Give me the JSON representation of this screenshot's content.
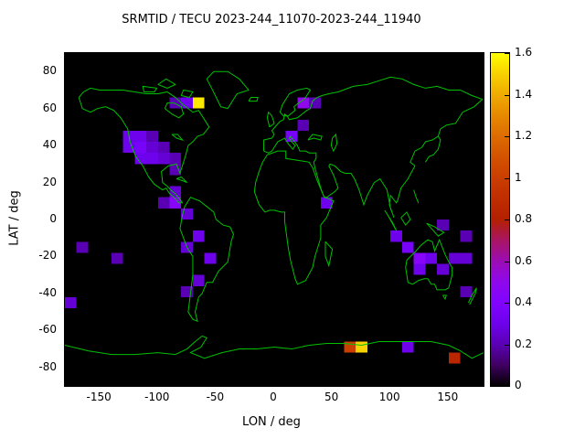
{
  "chart_data": {
    "type": "heatmap",
    "title": "SRMTID / TECU 2023-244_11070-2023-244_11940",
    "xlabel": "LON / deg",
    "ylabel": "LAT / deg",
    "xlim": [
      -180,
      180
    ],
    "ylim": [
      -90,
      90
    ],
    "xticks": [
      -150,
      -100,
      -50,
      0,
      50,
      100,
      150
    ],
    "yticks": [
      80,
      60,
      40,
      20,
      0,
      -20,
      -40,
      -60,
      -80
    ],
    "grid": false,
    "background": "#000000",
    "coastline_color": "#00c000",
    "palette": "black-purple-violet-red-orange-yellow",
    "colorbar": {
      "min": 0,
      "max": 1.6,
      "ticks": [
        0,
        0.2,
        0.4,
        0.6,
        0.8,
        1,
        1.2,
        1.4,
        1.6
      ],
      "tick_labels": [
        "0",
        "0.2",
        "0.4",
        "0.6",
        "0.8",
        "1",
        "1.2",
        "1.4",
        "1.6"
      ],
      "position": "right"
    },
    "cell_size_deg": {
      "lon": 10,
      "lat": 6
    },
    "cells": [
      {
        "lon": -85,
        "lat": 63,
        "value": 0.2
      },
      {
        "lon": -75,
        "lat": 63,
        "value": 0.3
      },
      {
        "lon": -65,
        "lat": 63,
        "value": 1.55
      },
      {
        "lon": 25,
        "lat": 63,
        "value": 0.5
      },
      {
        "lon": 35,
        "lat": 63,
        "value": 0.2
      },
      {
        "lon": -125,
        "lat": 45,
        "value": 0.3
      },
      {
        "lon": -115,
        "lat": 45,
        "value": 0.3
      },
      {
        "lon": -105,
        "lat": 45,
        "value": 0.2
      },
      {
        "lon": -125,
        "lat": 39,
        "value": 0.3
      },
      {
        "lon": -115,
        "lat": 39,
        "value": 0.35
      },
      {
        "lon": -105,
        "lat": 39,
        "value": 0.25
      },
      {
        "lon": -95,
        "lat": 39,
        "value": 0.2
      },
      {
        "lon": -115,
        "lat": 33,
        "value": 0.3
      },
      {
        "lon": -105,
        "lat": 33,
        "value": 0.3
      },
      {
        "lon": -95,
        "lat": 33,
        "value": 0.25
      },
      {
        "lon": -85,
        "lat": 33,
        "value": 0.2
      },
      {
        "lon": -85,
        "lat": 27,
        "value": 0.2
      },
      {
        "lon": 15,
        "lat": 45,
        "value": 0.35
      },
      {
        "lon": 25,
        "lat": 51,
        "value": 0.2
      },
      {
        "lon": -85,
        "lat": 15,
        "value": 0.25
      },
      {
        "lon": -85,
        "lat": 9,
        "value": 0.45
      },
      {
        "lon": -95,
        "lat": 9,
        "value": 0.2
      },
      {
        "lon": 45,
        "lat": 9,
        "value": 0.3
      },
      {
        "lon": -75,
        "lat": 3,
        "value": 0.25
      },
      {
        "lon": -65,
        "lat": -9,
        "value": 0.3
      },
      {
        "lon": -75,
        "lat": -15,
        "value": 0.25
      },
      {
        "lon": -55,
        "lat": -21,
        "value": 0.3
      },
      {
        "lon": -65,
        "lat": -33,
        "value": 0.25
      },
      {
        "lon": -75,
        "lat": -39,
        "value": 0.2
      },
      {
        "lon": -165,
        "lat": -15,
        "value": 0.2
      },
      {
        "lon": -135,
        "lat": -21,
        "value": 0.2
      },
      {
        "lon": -175,
        "lat": -45,
        "value": 0.25
      },
      {
        "lon": 105,
        "lat": -9,
        "value": 0.3
      },
      {
        "lon": 115,
        "lat": -15,
        "value": 0.35
      },
      {
        "lon": 125,
        "lat": -21,
        "value": 0.45
      },
      {
        "lon": 135,
        "lat": -21,
        "value": 0.3
      },
      {
        "lon": 155,
        "lat": -21,
        "value": 0.25
      },
      {
        "lon": 165,
        "lat": -21,
        "value": 0.25
      },
      {
        "lon": 125,
        "lat": -27,
        "value": 0.3
      },
      {
        "lon": 145,
        "lat": -27,
        "value": 0.25
      },
      {
        "lon": 145,
        "lat": -3,
        "value": 0.2
      },
      {
        "lon": 165,
        "lat": -9,
        "value": 0.2
      },
      {
        "lon": 165,
        "lat": -39,
        "value": 0.2
      },
      {
        "lon": 65,
        "lat": -69,
        "value": 1.0
      },
      {
        "lon": 75,
        "lat": -69,
        "value": 1.5
      },
      {
        "lon": 115,
        "lat": -69,
        "value": 0.3
      },
      {
        "lon": 155,
        "lat": -75,
        "value": 0.85
      }
    ]
  }
}
